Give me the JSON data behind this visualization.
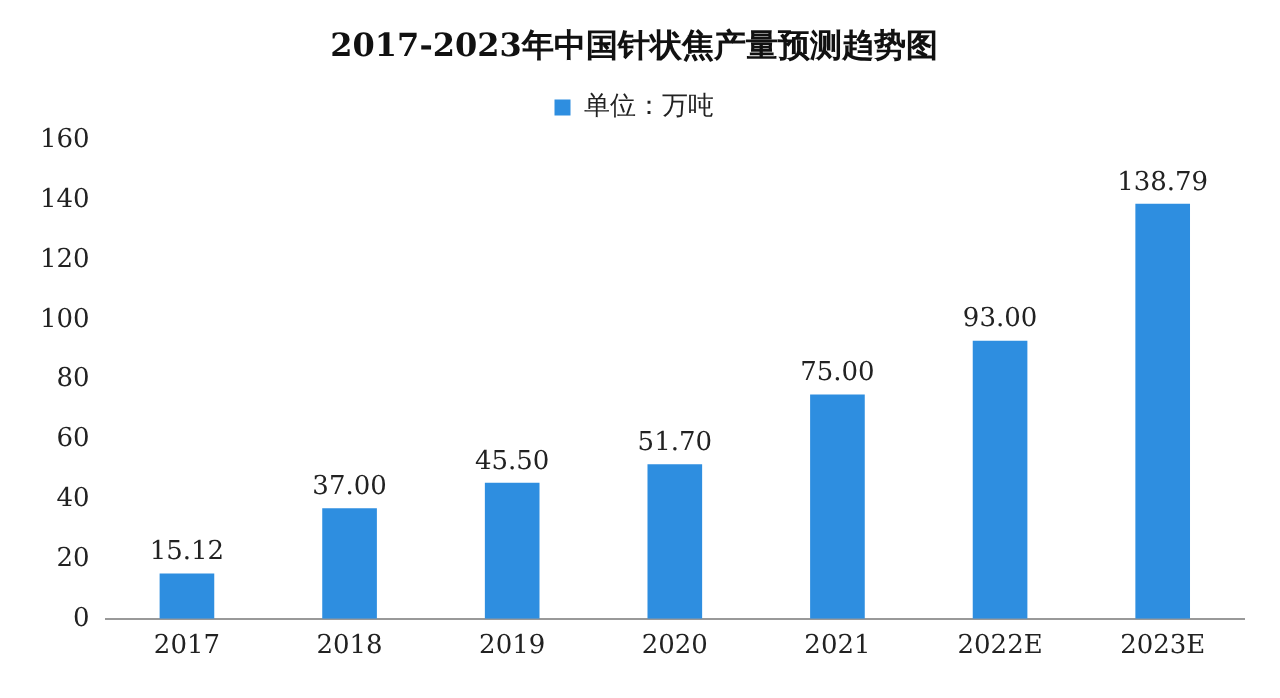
{
  "chart_data": {
    "type": "bar",
    "title": "2017-2023年中国针状焦产量预测趋势图",
    "categories": [
      "2017",
      "2018",
      "2019",
      "2020",
      "2021",
      "2022E",
      "2023E"
    ],
    "series": [
      {
        "name": "单位：万吨",
        "color": "#2e8ee0",
        "values": [
          15.12,
          37.0,
          45.5,
          51.7,
          75.0,
          93.0,
          138.79
        ],
        "value_labels": [
          "15.12",
          "37.00",
          "45.50",
          "51.70",
          "75.00",
          "93.00",
          "138.79"
        ]
      }
    ],
    "ylim": [
      0,
      160
    ],
    "yticks": [
      0,
      20,
      40,
      60,
      80,
      100,
      120,
      140,
      160
    ],
    "grid": false,
    "legend": "top"
  }
}
